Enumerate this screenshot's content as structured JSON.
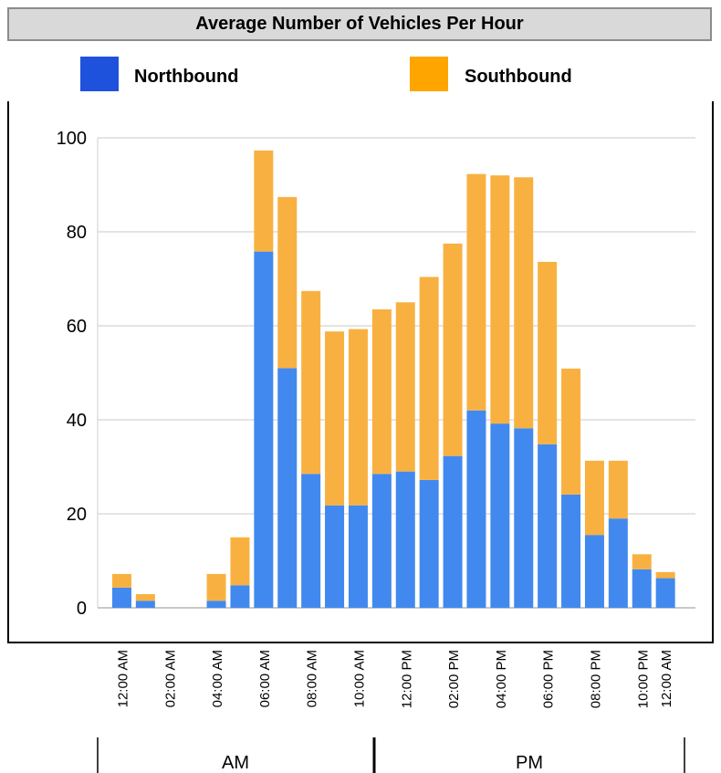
{
  "chart_data": {
    "type": "bar",
    "stacked": true,
    "title": "Average Number of Vehicles Per Hour",
    "ylim": [
      0,
      100
    ],
    "yticks": [
      0,
      20,
      40,
      60,
      80,
      100
    ],
    "grid": true,
    "legend_position": "top",
    "x_tick_labels": [
      "12:00 AM",
      "02:00 AM",
      "04:00 AM",
      "06:00 AM",
      "08:00 AM",
      "10:00 AM",
      "12:00 PM",
      "02:00 PM",
      "04:00 PM",
      "06:00 PM",
      "08:00 PM",
      "10:00 PM",
      "12:00 AM"
    ],
    "period_labels": [
      "AM",
      "PM"
    ],
    "hours": [
      0,
      1,
      2,
      3,
      4,
      5,
      6,
      7,
      8,
      9,
      10,
      11,
      12,
      13,
      14,
      15,
      16,
      17,
      18,
      19,
      20,
      21,
      22,
      23
    ],
    "series": [
      {
        "name": "Northbound",
        "color": "#4189ee",
        "values": [
          4.3,
          1.5,
          0,
          0,
          1.5,
          4.8,
          75.8,
          51.0,
          28.5,
          21.8,
          21.8,
          28.5,
          29.0,
          27.2,
          32.3,
          42.0,
          39.2,
          38.2,
          34.8,
          24.1,
          15.5,
          19.0,
          8.2,
          6.3
        ]
      },
      {
        "name": "Southbound",
        "color": "#f8b141",
        "values": [
          2.9,
          1.4,
          0,
          0,
          5.7,
          10.2,
          21.5,
          36.4,
          38.9,
          37.0,
          37.5,
          35.0,
          36.0,
          43.2,
          45.2,
          50.3,
          52.8,
          53.4,
          38.8,
          26.8,
          15.8,
          12.3,
          3.2,
          1.3
        ]
      }
    ]
  },
  "legend": [
    {
      "name": "Northbound",
      "color": "#1f52dc"
    },
    {
      "name": "Southbound",
      "color": "#ffa500"
    }
  ]
}
